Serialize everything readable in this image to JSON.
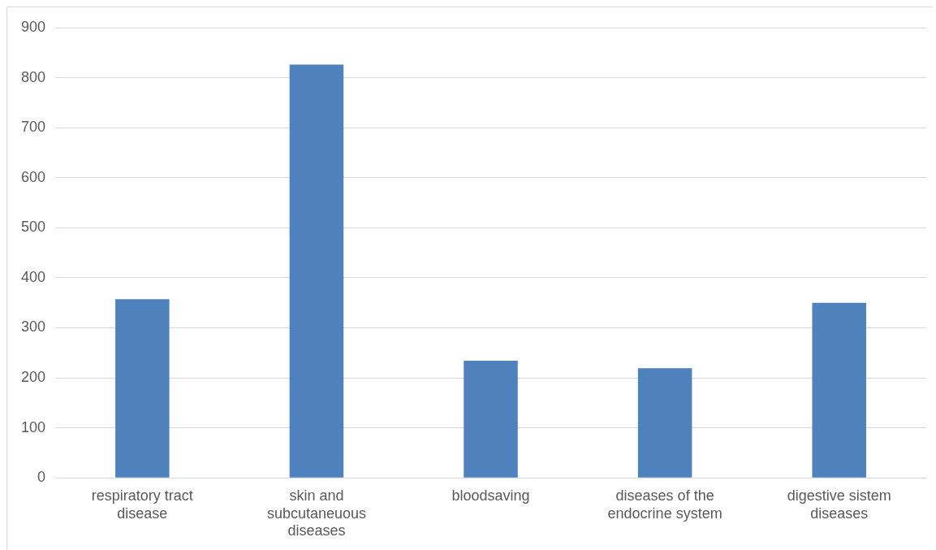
{
  "chart_data": {
    "type": "bar",
    "categories": [
      "respiratory tract disease",
      "skin and subcutaneuous diseases",
      "bloodsaving",
      "diseases of the endocrine system",
      "digestive sistem diseases"
    ],
    "values": [
      357,
      826,
      234,
      219,
      350
    ],
    "color": "#4f81bd",
    "ylim": [
      0,
      900
    ],
    "yticks": [
      0,
      100,
      200,
      300,
      400,
      500,
      600,
      700,
      800,
      900
    ],
    "grid": "y",
    "legend": false
  }
}
